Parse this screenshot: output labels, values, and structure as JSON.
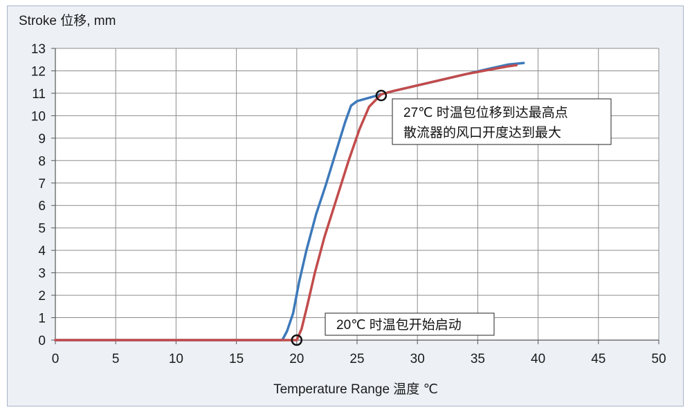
{
  "chart_data": {
    "type": "line",
    "ylabel": "Stroke 位移, mm",
    "xlabel": "Temperature Range 温度  ℃",
    "xlim": [
      0,
      50
    ],
    "ylim": [
      0,
      13
    ],
    "x_ticks": [
      0,
      5,
      10,
      15,
      20,
      25,
      30,
      35,
      40,
      45,
      50
    ],
    "y_ticks": [
      0,
      1,
      2,
      3,
      4,
      5,
      6,
      7,
      8,
      9,
      10,
      11,
      12,
      13
    ],
    "grid": true,
    "series": [
      {
        "color": "#3d79ba",
        "points": [
          [
            0,
            0
          ],
          [
            18.8,
            0
          ],
          [
            19.2,
            0.4
          ],
          [
            19.7,
            1.2
          ],
          [
            20.2,
            2.6
          ],
          [
            20.8,
            4.0
          ],
          [
            21.6,
            5.6
          ],
          [
            22.4,
            6.9
          ],
          [
            23.2,
            8.3
          ],
          [
            24.0,
            9.7
          ],
          [
            24.5,
            10.45
          ],
          [
            25.0,
            10.65
          ],
          [
            26.0,
            10.8
          ],
          [
            27.0,
            10.95
          ],
          [
            28.0,
            11.1
          ],
          [
            30.0,
            11.35
          ],
          [
            32.0,
            11.6
          ],
          [
            34.0,
            11.85
          ],
          [
            36.0,
            12.1
          ],
          [
            37.5,
            12.28
          ],
          [
            38.8,
            12.35
          ]
        ]
      },
      {
        "color": "#c24b4b",
        "points": [
          [
            0,
            0
          ],
          [
            20,
            0
          ],
          [
            20.4,
            0.5
          ],
          [
            20.9,
            1.6
          ],
          [
            21.5,
            3.0
          ],
          [
            22.3,
            4.6
          ],
          [
            23.3,
            6.3
          ],
          [
            24.3,
            8.0
          ],
          [
            25.2,
            9.4
          ],
          [
            26.0,
            10.4
          ],
          [
            27.0,
            10.95
          ],
          [
            28.0,
            11.1
          ],
          [
            30.0,
            11.35
          ],
          [
            32.0,
            11.6
          ],
          [
            34.0,
            11.85
          ],
          [
            36.0,
            12.05
          ],
          [
            37.5,
            12.2
          ],
          [
            38.2,
            12.25
          ]
        ]
      }
    ],
    "markers": [
      {
        "x": 20,
        "y": 0
      },
      {
        "x": 27,
        "y": 10.9
      }
    ],
    "annotations": [
      {
        "text_lines": [
          "20℃ 时温包开始启动"
        ]
      },
      {
        "text_lines": [
          "27℃ 时温包位移到达最高点",
          "散流器的风口开度达到最大"
        ]
      }
    ]
  }
}
